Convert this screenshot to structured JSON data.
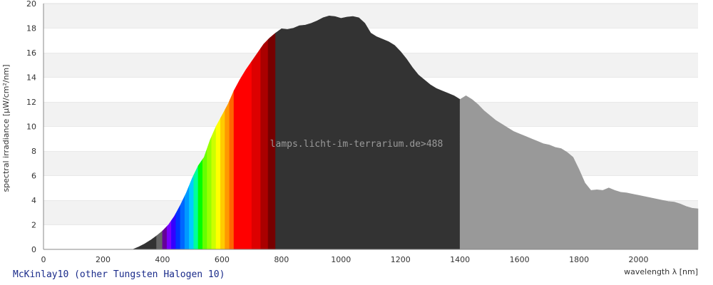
{
  "chart_data": {
    "type": "area",
    "caption": "McKinlay10 (other Tungsten Halogen 10)",
    "watermark": "lamps.licht-im-terrarium.de>488",
    "xlabel": "wavelength λ [nm]",
    "ylabel": "spectral irradiance [µW/cm²/nm]",
    "xlim": [
      0,
      2200
    ],
    "ylim": [
      0,
      20
    ],
    "xticks": [
      0,
      200,
      400,
      600,
      800,
      1000,
      1200,
      1400,
      1600,
      1800,
      2000
    ],
    "yticks": [
      0,
      2,
      4,
      6,
      8,
      10,
      12,
      14,
      16,
      18,
      20
    ],
    "grid": "horizontal-bands",
    "series": [
      {
        "x": [
          300,
          320,
          340,
          360,
          380,
          400,
          420,
          440,
          460,
          480,
          500,
          520,
          540,
          560,
          580,
          600,
          620,
          640,
          660,
          680,
          700,
          720,
          740,
          760,
          780,
          800,
          820,
          840,
          860,
          880,
          900,
          920,
          940,
          960,
          980,
          1000,
          1020,
          1040,
          1060,
          1080,
          1100,
          1120,
          1140,
          1160,
          1180,
          1200,
          1220,
          1240,
          1260,
          1280,
          1300,
          1320,
          1340,
          1360,
          1380,
          1400,
          1420,
          1440,
          1460,
          1480,
          1500,
          1520,
          1540,
          1560,
          1580,
          1600,
          1620,
          1640,
          1660,
          1680,
          1700,
          1720,
          1740,
          1760,
          1780,
          1800,
          1820,
          1840,
          1860,
          1880,
          1900,
          1920,
          1940,
          1960,
          1980,
          2000,
          2020,
          2040,
          2060,
          2080,
          2100,
          2120,
          2140,
          2160,
          2180,
          2200
        ],
        "y": [
          0.0,
          0.2,
          0.45,
          0.75,
          1.1,
          1.5,
          2.0,
          2.7,
          3.6,
          4.6,
          5.8,
          6.8,
          7.5,
          8.9,
          10.0,
          10.9,
          11.8,
          12.9,
          13.8,
          14.6,
          15.3,
          16.0,
          16.7,
          17.2,
          17.6,
          17.95,
          17.9,
          18.0,
          18.2,
          18.25,
          18.4,
          18.6,
          18.85,
          19.0,
          18.95,
          18.8,
          18.9,
          18.95,
          18.85,
          18.4,
          17.6,
          17.3,
          17.1,
          16.9,
          16.6,
          16.1,
          15.5,
          14.8,
          14.2,
          13.8,
          13.4,
          13.1,
          12.9,
          12.7,
          12.5,
          12.2,
          12.5,
          12.2,
          11.8,
          11.3,
          10.9,
          10.5,
          10.2,
          9.9,
          9.6,
          9.4,
          9.2,
          9.0,
          8.8,
          8.6,
          8.5,
          8.3,
          8.2,
          7.9,
          7.5,
          6.5,
          5.4,
          4.8,
          4.85,
          4.8,
          5.0,
          4.8,
          4.65,
          4.6,
          4.5,
          4.4,
          4.3,
          4.2,
          4.1,
          4.0,
          3.9,
          3.85,
          3.7,
          3.5,
          3.35,
          3.3
        ]
      }
    ]
  },
  "colors": {
    "band_light": "#f2f2f2",
    "band_white": "#ffffff",
    "uv_fill": "#333333",
    "ir_a_fill": "#333333",
    "ir_b_fill": "#999999",
    "caption": "#1a2b8a"
  },
  "visible_spectrum": [
    {
      "from": 300,
      "to": 380,
      "color": "#333333"
    },
    {
      "from": 380,
      "to": 400,
      "color": "#666666"
    },
    {
      "from": 400,
      "to": 415,
      "color": "#660099"
    },
    {
      "from": 415,
      "to": 430,
      "color": "#7700ff"
    },
    {
      "from": 430,
      "to": 445,
      "color": "#3300ff"
    },
    {
      "from": 445,
      "to": 460,
      "color": "#0033ff"
    },
    {
      "from": 460,
      "to": 475,
      "color": "#0066ff"
    },
    {
      "from": 475,
      "to": 490,
      "color": "#0099ff"
    },
    {
      "from": 490,
      "to": 505,
      "color": "#00ccff"
    },
    {
      "from": 505,
      "to": 520,
      "color": "#00ff99"
    },
    {
      "from": 520,
      "to": 535,
      "color": "#00ff00"
    },
    {
      "from": 535,
      "to": 550,
      "color": "#66ff00"
    },
    {
      "from": 550,
      "to": 565,
      "color": "#99ff00"
    },
    {
      "from": 565,
      "to": 580,
      "color": "#ccff00"
    },
    {
      "from": 580,
      "to": 595,
      "color": "#ffff00"
    },
    {
      "from": 595,
      "to": 610,
      "color": "#ffcc00"
    },
    {
      "from": 610,
      "to": 625,
      "color": "#ff9900"
    },
    {
      "from": 625,
      "to": 640,
      "color": "#ff6600"
    },
    {
      "from": 640,
      "to": 700,
      "color": "#ff0000"
    },
    {
      "from": 700,
      "to": 730,
      "color": "#dd0000"
    },
    {
      "from": 730,
      "to": 755,
      "color": "#aa0000"
    },
    {
      "from": 755,
      "to": 780,
      "color": "#770000"
    }
  ]
}
